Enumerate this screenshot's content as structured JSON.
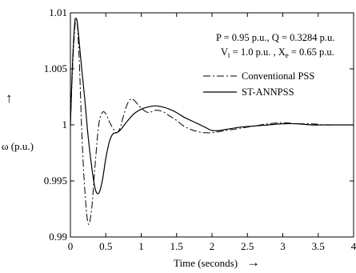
{
  "chart_data": {
    "type": "line",
    "title": "",
    "xlabel": "Time (seconds)",
    "xlabel_arrow": "→",
    "ylabel": "ω (p.u.)",
    "ylabel_arrow": "↑",
    "xlim": [
      0,
      4
    ],
    "ylim": [
      0.99,
      1.01
    ],
    "x_ticks": [
      0,
      0.5,
      1,
      1.5,
      2,
      2.5,
      3,
      3.5,
      4
    ],
    "x_tick_labels": [
      "0",
      "0.5",
      "1",
      "1.5",
      "2",
      "2.5",
      "3",
      "3.5",
      "4"
    ],
    "y_ticks": [
      0.99,
      0.995,
      1,
      1.005,
      1.01
    ],
    "y_tick_labels": [
      "0.99",
      "0.995",
      "1",
      "1.005",
      "1.01"
    ],
    "grid": false,
    "legend_position": "upper-right",
    "annotations": {
      "line1": "P = 0.95 p.u., Q = 0.3284 p.u.",
      "line2_prefix": "V",
      "line2_sub1": "t",
      "line2_mid": " = 1.0 p.u. , X",
      "line2_sub2": "e",
      "line2_suffix": " = 0.65 p.u."
    },
    "series": [
      {
        "name": "Conventional PSS",
        "style": "dashdot",
        "color": "#000000",
        "x": [
          0,
          0.03,
          0.06,
          0.08,
          0.1,
          0.13,
          0.16,
          0.2,
          0.25,
          0.3,
          0.35,
          0.4,
          0.45,
          0.5,
          0.55,
          0.6,
          0.65,
          0.7,
          0.75,
          0.8,
          0.85,
          0.9,
          1.0,
          1.1,
          1.2,
          1.3,
          1.4,
          1.5,
          1.6,
          1.7,
          1.8,
          1.9,
          2.0,
          2.1,
          2.2,
          2.4,
          2.6,
          2.8,
          3.0,
          3.2,
          3.4,
          3.6,
          3.8,
          4.0
        ],
        "y": [
          1.0,
          1.005,
          1.0085,
          1.0093,
          1.0088,
          1.005,
          0.9995,
          0.9945,
          0.9912,
          0.9925,
          0.9965,
          1.0,
          1.0011,
          1.001,
          1.0003,
          0.9997,
          0.9993,
          0.9997,
          1.0008,
          1.0018,
          1.0023,
          1.0022,
          1.0015,
          1.0011,
          1.0013,
          1.0012,
          1.0008,
          1.0004,
          0.9999,
          0.9996,
          0.9994,
          0.9993,
          0.9993,
          0.9994,
          0.9995,
          0.9997,
          0.9999,
          1.0001,
          1.0002,
          1.0001,
          1.0001,
          1.0,
          1.0,
          1.0
        ]
      },
      {
        "name": "ST-ANNPSS",
        "style": "solid",
        "color": "#000000",
        "x": [
          0,
          0.03,
          0.06,
          0.08,
          0.1,
          0.13,
          0.16,
          0.2,
          0.25,
          0.3,
          0.35,
          0.4,
          0.45,
          0.5,
          0.55,
          0.6,
          0.65,
          0.7,
          0.8,
          0.9,
          1.0,
          1.1,
          1.2,
          1.3,
          1.4,
          1.5,
          1.6,
          1.7,
          1.8,
          1.9,
          2.0,
          2.1,
          2.2,
          2.4,
          2.6,
          2.8,
          3.0,
          3.2,
          3.4,
          3.6,
          3.8,
          4.0
        ],
        "y": [
          1.0,
          1.0055,
          1.009,
          1.0095,
          1.009,
          1.007,
          1.005,
          1.0025,
          0.999,
          0.9963,
          0.9943,
          0.9939,
          0.995,
          0.997,
          0.9985,
          0.9992,
          0.9993,
          0.9995,
          1.0003,
          1.001,
          1.0014,
          1.0016,
          1.0017,
          1.0016,
          1.0014,
          1.0011,
          1.0007,
          1.0004,
          1.0001,
          0.9998,
          0.9995,
          0.9995,
          0.9996,
          0.9998,
          0.9999,
          1.0,
          1.0001,
          1.0001,
          1.0,
          1.0,
          1.0,
          1.0
        ]
      }
    ]
  }
}
